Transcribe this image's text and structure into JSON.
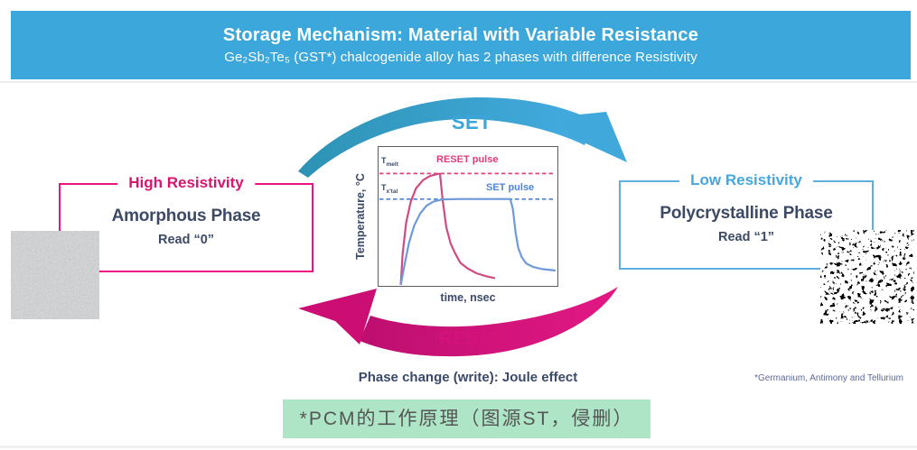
{
  "header": {
    "title": "Storage Mechanism: Material with Variable Resistance",
    "subtitle": "Ge₂Sb₂Te₅ (GST*) chalcogenide alloy has 2 phases with difference Resistivity",
    "bg_color": "#3BA7DB",
    "text_color": "#ffffff"
  },
  "cycle": {
    "set_label": "SET",
    "reset_label": "RESET",
    "set_color": "#3BA6DB",
    "reset_color": "#D5127C"
  },
  "chart_data": {
    "type": "line",
    "xlabel": "time, nsec",
    "ylabel": "Temperature, °C",
    "grid": false,
    "legend_position": "inline-annotations",
    "tmelt": {
      "base": "T",
      "sub": "melt"
    },
    "txtal": {
      "base": "T",
      "sub": "x'tal"
    },
    "annotations": [
      {
        "label": "RESET pulse",
        "color": "#E23D7B"
      },
      {
        "label": "SET pulse",
        "color": "#4E86D8"
      }
    ],
    "ref_lines": [
      {
        "name": "Tmelt",
        "level": 80.8,
        "color": "#E8407D",
        "style": "dashed"
      },
      {
        "name": "Tx'tal",
        "level": 62.2,
        "color": "#4D7FD6",
        "style": "dashed"
      }
    ],
    "series": [
      {
        "name": "RESET pulse",
        "color": "#CF4B82",
        "points": [
          [
            12.5,
            0
          ],
          [
            13.5,
            22
          ],
          [
            15.5,
            45
          ],
          [
            18,
            60
          ],
          [
            21,
            70
          ],
          [
            25,
            76
          ],
          [
            29,
            79
          ],
          [
            33.5,
            80.5
          ],
          [
            34.5,
            80.5
          ],
          [
            36,
            62
          ],
          [
            38,
            42
          ],
          [
            40.5,
            30
          ],
          [
            43,
            23
          ],
          [
            46,
            16
          ],
          [
            50,
            12
          ],
          [
            55,
            8.5
          ],
          [
            60,
            6.5
          ],
          [
            65,
            5
          ]
        ]
      },
      {
        "name": "SET pulse",
        "color": "#6F9AD9",
        "points": [
          [
            12.5,
            0
          ],
          [
            14.5,
            14
          ],
          [
            17,
            30
          ],
          [
            20,
            43
          ],
          [
            23.5,
            52
          ],
          [
            27,
            57.5
          ],
          [
            31,
            60.5
          ],
          [
            36,
            62
          ],
          [
            45,
            62.3
          ],
          [
            55,
            62.3
          ],
          [
            65,
            62.3
          ],
          [
            74,
            62.3
          ],
          [
            75.5,
            55
          ],
          [
            77,
            38
          ],
          [
            78.5,
            27
          ],
          [
            80.5,
            20
          ],
          [
            83,
            15.5
          ],
          [
            87,
            13
          ],
          [
            92,
            11.5
          ],
          [
            99,
            10.5
          ]
        ]
      }
    ],
    "x_range_note": "qualitative nanosecond time axis",
    "y_range_note": "qualitative temperature axis with Tmelt and Tx'tal thresholds"
  },
  "left_phase": {
    "title": "High Resistivity",
    "name": "Amorphous Phase",
    "read": "Read “0”",
    "accent": "#EC1380"
  },
  "right_phase": {
    "title": "Low Resistivity",
    "name": "Polycrystalline Phase",
    "read": "Read “1”",
    "accent": "#5FAEDC"
  },
  "bottom": {
    "process_note": "Phase change (write): Joule effect",
    "footnote": "*Germanium, Antimony and Tellurium",
    "caption": "*PCM的工作原理（图源ST，侵删）",
    "caption_bg": "#AEE5C6"
  }
}
